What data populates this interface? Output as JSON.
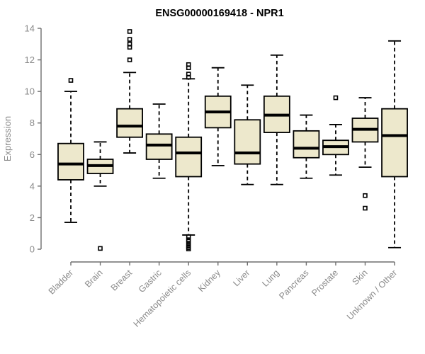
{
  "chart_data": {
    "type": "boxplot",
    "title": "ENSG00000169418 - NPR1",
    "ylabel": "Expression",
    "xlabel": "",
    "ylim": [
      0,
      14
    ],
    "yticks": [
      0,
      2,
      4,
      6,
      8,
      10,
      12,
      14
    ],
    "grid": false,
    "legend": false,
    "categories": [
      "Bladder",
      "Brain",
      "Breast",
      "Gastric",
      "Hematopoietic cells",
      "Kidney",
      "Liver",
      "Lung",
      "Pancreas",
      "Prostate",
      "Skin",
      "Unknown / Other"
    ],
    "boxes": [
      {
        "category": "Bladder",
        "low": 1.7,
        "q1": 4.4,
        "median": 5.4,
        "q3": 6.7,
        "high": 10.0,
        "outliers": [
          10.7
        ]
      },
      {
        "category": "Brain",
        "low": 4.0,
        "q1": 4.8,
        "median": 5.3,
        "q3": 5.7,
        "high": 6.8,
        "outliers": [
          0.05
        ]
      },
      {
        "category": "Breast",
        "low": 6.1,
        "q1": 7.1,
        "median": 7.8,
        "q3": 8.9,
        "high": 11.2,
        "outliers": [
          13.8,
          13.3,
          13.0,
          12.8,
          12.0
        ]
      },
      {
        "category": "Gastric",
        "low": 4.5,
        "q1": 5.7,
        "median": 6.6,
        "q3": 7.3,
        "high": 9.2,
        "outliers": []
      },
      {
        "category": "Hematopoietic cells",
        "low": 0.9,
        "q1": 4.6,
        "median": 6.1,
        "q3": 7.1,
        "high": 10.8,
        "outliers": [
          11.7,
          11.5,
          11.1,
          10.9,
          0.8,
          0.6,
          0.5,
          0.35,
          0.2,
          0.1,
          0.02
        ]
      },
      {
        "category": "Kidney",
        "low": 5.3,
        "q1": 7.7,
        "median": 8.7,
        "q3": 9.7,
        "high": 11.5,
        "outliers": []
      },
      {
        "category": "Liver",
        "low": 4.1,
        "q1": 5.4,
        "median": 6.1,
        "q3": 8.2,
        "high": 10.4,
        "outliers": []
      },
      {
        "category": "Lung",
        "low": 4.1,
        "q1": 7.4,
        "median": 8.5,
        "q3": 9.7,
        "high": 12.3,
        "outliers": []
      },
      {
        "category": "Pancreas",
        "low": 4.5,
        "q1": 5.8,
        "median": 6.4,
        "q3": 7.5,
        "high": 8.5,
        "outliers": []
      },
      {
        "category": "Prostate",
        "low": 4.7,
        "q1": 6.0,
        "median": 6.5,
        "q3": 6.9,
        "high": 7.9,
        "outliers": [
          9.6
        ]
      },
      {
        "category": "Skin",
        "low": 5.2,
        "q1": 6.8,
        "median": 7.6,
        "q3": 8.3,
        "high": 9.6,
        "outliers": [
          3.4,
          2.6
        ]
      },
      {
        "category": "Unknown / Other",
        "low": 0.1,
        "q1": 4.6,
        "median": 7.2,
        "q3": 8.9,
        "high": 13.2,
        "outliers": []
      }
    ],
    "colors": {
      "background": "#ffffff",
      "box_fill": "#EDE8CC",
      "box_stroke": "#000000",
      "median_stroke": "#000000",
      "whisker_stroke": "#000000",
      "outlier_stroke": "#000000",
      "axis_line": "#6e6e6e",
      "axis_text": "#8a8a8a",
      "title_color": "#000000"
    }
  }
}
